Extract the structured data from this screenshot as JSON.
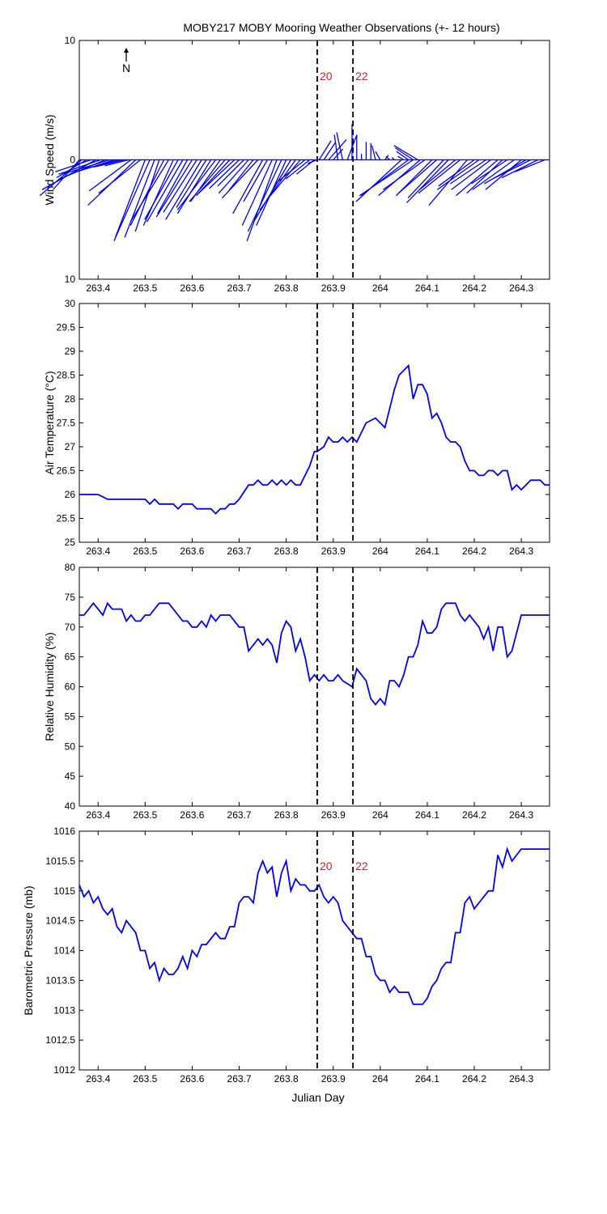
{
  "chart_data": [
    {
      "type": "wind-sticks",
      "title": "MOBY217 MOBY Mooring Weather Observations (+- 12 hours)",
      "ylabel": "Wind Speed (m/s)",
      "xlim": [
        263.36,
        264.36
      ],
      "ylim": [
        -10,
        10
      ],
      "y_tick_labels": [
        {
          "v": 10,
          "t": "10"
        },
        {
          "v": 0,
          "t": "0"
        },
        {
          "v": -10,
          "t": "10"
        }
      ],
      "north_label": "N",
      "marker_labels": [
        "20",
        "22"
      ],
      "marker_x": [
        263.866,
        263.942
      ],
      "wind": [
        {
          "x": 263.36,
          "u": 2.2,
          "v": -2.5
        },
        {
          "x": 263.365,
          "u": 3.5,
          "v": -3.0
        },
        {
          "x": 263.375,
          "u": 2.5,
          "v": -1.5
        },
        {
          "x": 263.385,
          "u": 3.0,
          "v": -1.0
        },
        {
          "x": 263.395,
          "u": 4.5,
          "v": -2.5
        },
        {
          "x": 263.405,
          "u": 3.5,
          "v": -1.2
        },
        {
          "x": 263.415,
          "u": 3.8,
          "v": -1.6
        },
        {
          "x": 263.425,
          "u": 4.0,
          "v": -1.2
        },
        {
          "x": 263.435,
          "u": 3.5,
          "v": -1.1
        },
        {
          "x": 263.445,
          "u": 3.0,
          "v": -0.8
        },
        {
          "x": 263.455,
          "u": 2.5,
          "v": -0.6
        },
        {
          "x": 263.465,
          "u": 2.0,
          "v": -0.5
        },
        {
          "x": 263.47,
          "u": 3.5,
          "v": -2.6
        },
        {
          "x": 263.48,
          "u": 4.0,
          "v": -3.8
        },
        {
          "x": 263.49,
          "u": 3.5,
          "v": -2.8
        },
        {
          "x": 263.5,
          "u": 2.5,
          "v": -6.5
        },
        {
          "x": 263.51,
          "u": 3.0,
          "v": -6.8
        },
        {
          "x": 263.52,
          "u": 2.5,
          "v": -6.5
        },
        {
          "x": 263.53,
          "u": 2.0,
          "v": -6.0
        },
        {
          "x": 263.54,
          "u": 2.8,
          "v": -5.5
        },
        {
          "x": 263.55,
          "u": 3.2,
          "v": -5.2
        },
        {
          "x": 263.56,
          "u": 2.5,
          "v": -5.5
        },
        {
          "x": 263.57,
          "u": 2.8,
          "v": -5.0
        },
        {
          "x": 263.58,
          "u": 3.0,
          "v": -5.2
        },
        {
          "x": 263.59,
          "u": 2.5,
          "v": -4.5
        },
        {
          "x": 263.6,
          "u": 3.0,
          "v": -4.8
        },
        {
          "x": 263.61,
          "u": 2.8,
          "v": -4.4
        },
        {
          "x": 263.62,
          "u": 3.0,
          "v": -5.0
        },
        {
          "x": 263.63,
          "u": 2.5,
          "v": -4.0
        },
        {
          "x": 263.64,
          "u": 2.8,
          "v": -4.5
        },
        {
          "x": 263.65,
          "u": 3.2,
          "v": -4.2
        },
        {
          "x": 263.66,
          "u": 2.5,
          "v": -3.5
        },
        {
          "x": 263.67,
          "u": 3.0,
          "v": -3.5
        },
        {
          "x": 263.68,
          "u": 2.8,
          "v": -3.0
        },
        {
          "x": 263.69,
          "u": 3.0,
          "v": -2.8
        },
        {
          "x": 263.7,
          "u": 2.5,
          "v": -2.4
        },
        {
          "x": 263.71,
          "u": 2.2,
          "v": -2.2
        },
        {
          "x": 263.72,
          "u": 2.5,
          "v": -2.8
        },
        {
          "x": 263.73,
          "u": 2.0,
          "v": -2.5
        },
        {
          "x": 263.74,
          "u": 3.0,
          "v": -3.2
        },
        {
          "x": 263.75,
          "u": 2.5,
          "v": -4.5
        },
        {
          "x": 263.76,
          "u": 2.0,
          "v": -3.5
        },
        {
          "x": 263.77,
          "u": 2.5,
          "v": -5.5
        },
        {
          "x": 263.78,
          "u": 2.5,
          "v": -6.8
        },
        {
          "x": 263.79,
          "u": 2.8,
          "v": -6.0
        },
        {
          "x": 263.8,
          "u": 2.5,
          "v": -5.5
        },
        {
          "x": 263.81,
          "u": 3.0,
          "v": -5.0
        },
        {
          "x": 263.82,
          "u": 3.0,
          "v": -4.2
        },
        {
          "x": 263.83,
          "u": 2.5,
          "v": -3.0
        },
        {
          "x": 263.84,
          "u": 2.5,
          "v": -2.0
        },
        {
          "x": 263.85,
          "u": 2.0,
          "v": -1.6
        },
        {
          "x": 263.86,
          "u": 1.5,
          "v": -1.2
        },
        {
          "x": 263.866,
          "u": 0.8,
          "v": -0.3
        },
        {
          "x": 263.87,
          "u": -1.0,
          "v": 1.6
        },
        {
          "x": 263.88,
          "u": -1.0,
          "v": 1.5
        },
        {
          "x": 263.89,
          "u": -1.5,
          "v": 1.7
        },
        {
          "x": 263.9,
          "u": -0.8,
          "v": 0.9
        },
        {
          "x": 263.91,
          "u": 0.3,
          "v": 2.1
        },
        {
          "x": 263.92,
          "u": 0.5,
          "v": 2.3
        },
        {
          "x": 263.93,
          "u": -0.8,
          "v": 2.1
        },
        {
          "x": 263.94,
          "u": 0.0,
          "v": 3.0
        },
        {
          "x": 263.95,
          "u": 0.0,
          "v": 2.1
        },
        {
          "x": 263.96,
          "u": 0.0,
          "v": 0.5
        },
        {
          "x": 263.97,
          "u": 0.0,
          "v": 1.5
        },
        {
          "x": 263.98,
          "u": 0.0,
          "v": 1.4
        },
        {
          "x": 263.99,
          "u": 0.3,
          "v": 1.2
        },
        {
          "x": 264.0,
          "u": 0.4,
          "v": 0.7
        },
        {
          "x": 264.01,
          "u": -0.3,
          "v": 0.4
        },
        {
          "x": 264.02,
          "u": 0.3,
          "v": 0.3
        },
        {
          "x": 264.03,
          "u": 0.2,
          "v": 0.2
        },
        {
          "x": 264.05,
          "u": 0.5,
          "v": 0.3
        },
        {
          "x": 264.06,
          "u": 1.0,
          "v": 0.7
        },
        {
          "x": 264.07,
          "u": 1.5,
          "v": 1.0
        },
        {
          "x": 264.08,
          "u": 2.0,
          "v": 1.2
        },
        {
          "x": 264.045,
          "u": 3.8,
          "v": -3.5
        },
        {
          "x": 264.06,
          "u": 4.0,
          "v": -3.0
        },
        {
          "x": 264.07,
          "u": 4.5,
          "v": -3.0
        },
        {
          "x": 264.085,
          "u": 3.5,
          "v": -3.0
        },
        {
          "x": 264.095,
          "u": 3.5,
          "v": -2.5
        },
        {
          "x": 264.11,
          "u": 3.0,
          "v": -3.0
        },
        {
          "x": 264.12,
          "u": 3.2,
          "v": -2.8
        },
        {
          "x": 264.135,
          "u": 3.0,
          "v": -3.2
        },
        {
          "x": 264.145,
          "u": 3.5,
          "v": -3.6
        },
        {
          "x": 264.16,
          "u": 3.0,
          "v": -2.5
        },
        {
          "x": 264.17,
          "u": 3.5,
          "v": -2.8
        },
        {
          "x": 264.185,
          "u": 3.2,
          "v": -3.8
        },
        {
          "x": 264.2,
          "u": 3.0,
          "v": -2.2
        },
        {
          "x": 264.21,
          "u": 3.5,
          "v": -2.5
        },
        {
          "x": 264.225,
          "u": 3.0,
          "v": -2.0
        },
        {
          "x": 264.235,
          "u": 3.3,
          "v": -2.5
        },
        {
          "x": 264.25,
          "u": 3.5,
          "v": -3.0
        },
        {
          "x": 264.26,
          "u": 3.0,
          "v": -2.8
        },
        {
          "x": 264.27,
          "u": 3.0,
          "v": -2.0
        },
        {
          "x": 264.285,
          "u": 3.5,
          "v": -2.5
        },
        {
          "x": 264.3,
          "u": 3.0,
          "v": -2.5
        },
        {
          "x": 264.31,
          "u": 3.5,
          "v": -2.0
        },
        {
          "x": 264.32,
          "u": 3.0,
          "v": -1.5
        },
        {
          "x": 264.335,
          "u": 3.0,
          "v": -1.5
        },
        {
          "x": 264.35,
          "u": 2.5,
          "v": -1.0
        }
      ]
    },
    {
      "type": "line",
      "xlabel": "Julian Day",
      "ylabel": "Air Temperature (°C)",
      "xlim": [
        263.36,
        264.36
      ],
      "ylim": [
        25,
        30
      ],
      "y_ticks": [
        25,
        25.5,
        26,
        26.5,
        27,
        27.5,
        28,
        28.5,
        29,
        29.5,
        30
      ],
      "marker_x": [
        263.866,
        263.942
      ],
      "x": [
        263.36,
        263.38,
        263.4,
        263.42,
        263.44,
        263.46,
        263.48,
        263.5,
        263.51,
        263.52,
        263.53,
        263.54,
        263.56,
        263.57,
        263.58,
        263.6,
        263.61,
        263.62,
        263.64,
        263.65,
        263.66,
        263.67,
        263.68,
        263.69,
        263.7,
        263.72,
        263.73,
        263.74,
        263.75,
        263.76,
        263.77,
        263.78,
        263.79,
        263.8,
        263.81,
        263.82,
        263.83,
        263.84,
        263.85,
        263.86,
        263.866,
        263.88,
        263.89,
        263.9,
        263.91,
        263.92,
        263.93,
        263.94,
        263.95,
        263.97,
        263.98,
        263.99,
        264.0,
        264.01,
        264.02,
        264.03,
        264.04,
        264.05,
        264.06,
        264.07,
        264.08,
        264.09,
        264.1,
        264.11,
        264.12,
        264.13,
        264.14,
        264.15,
        264.16,
        264.17,
        264.18,
        264.19,
        264.2,
        264.21,
        264.22,
        264.23,
        264.24,
        264.25,
        264.26,
        264.27,
        264.28,
        264.29,
        264.3,
        264.31,
        264.32,
        264.33,
        264.34,
        264.35,
        264.36
      ],
      "y": [
        26.0,
        26.0,
        26.0,
        25.9,
        25.9,
        25.9,
        25.9,
        25.9,
        25.8,
        25.9,
        25.8,
        25.8,
        25.8,
        25.7,
        25.8,
        25.8,
        25.7,
        25.7,
        25.7,
        25.6,
        25.7,
        25.7,
        25.8,
        25.8,
        25.9,
        26.2,
        26.2,
        26.3,
        26.2,
        26.2,
        26.3,
        26.2,
        26.3,
        26.2,
        26.3,
        26.2,
        26.2,
        26.4,
        26.6,
        26.9,
        26.9,
        27.0,
        27.2,
        27.1,
        27.1,
        27.2,
        27.1,
        27.2,
        27.1,
        27.5,
        27.55,
        27.6,
        27.5,
        27.4,
        27.8,
        28.2,
        28.5,
        28.6,
        28.7,
        28.0,
        28.3,
        28.3,
        28.1,
        27.6,
        27.7,
        27.5,
        27.2,
        27.1,
        27.1,
        27.0,
        26.7,
        26.5,
        26.5,
        26.4,
        26.4,
        26.5,
        26.5,
        26.4,
        26.5,
        26.5,
        26.1,
        26.2,
        26.1,
        26.2,
        26.3,
        26.3,
        26.3,
        26.2,
        26.2
      ]
    },
    {
      "type": "line",
      "xlabel": "Julian Day",
      "ylabel": "Relative Humidity (%)",
      "xlim": [
        263.36,
        264.36
      ],
      "ylim": [
        40,
        80
      ],
      "y_ticks": [
        40,
        45,
        50,
        55,
        60,
        65,
        70,
        75,
        80
      ],
      "marker_x": [
        263.866,
        263.942
      ],
      "x": [
        263.36,
        263.37,
        263.39,
        263.4,
        263.41,
        263.42,
        263.43,
        263.44,
        263.45,
        263.46,
        263.47,
        263.48,
        263.49,
        263.5,
        263.51,
        263.52,
        263.53,
        263.54,
        263.55,
        263.56,
        263.57,
        263.58,
        263.59,
        263.6,
        263.61,
        263.62,
        263.63,
        263.64,
        263.65,
        263.66,
        263.67,
        263.68,
        263.69,
        263.7,
        263.71,
        263.72,
        263.73,
        263.74,
        263.75,
        263.76,
        263.77,
        263.78,
        263.79,
        263.8,
        263.81,
        263.82,
        263.83,
        263.84,
        263.85,
        263.86,
        263.87,
        263.88,
        263.89,
        263.9,
        263.91,
        263.92,
        263.93,
        263.94,
        263.95,
        263.96,
        263.97,
        263.98,
        263.99,
        264.0,
        264.01,
        264.02,
        264.03,
        264.04,
        264.05,
        264.06,
        264.07,
        264.08,
        264.09,
        264.1,
        264.11,
        264.12,
        264.13,
        264.14,
        264.15,
        264.16,
        264.17,
        264.18,
        264.19,
        264.2,
        264.21,
        264.22,
        264.23,
        264.24,
        264.25,
        264.26,
        264.27,
        264.28,
        264.29,
        264.3,
        264.31,
        264.32,
        264.33,
        264.34,
        264.35,
        264.36
      ],
      "y": [
        72,
        72,
        74,
        73,
        72,
        74,
        73,
        73,
        73,
        71,
        72,
        71,
        71,
        72,
        72,
        73,
        74,
        74,
        74,
        73,
        72,
        71,
        71,
        70,
        70,
        71,
        70,
        72,
        71,
        72,
        72,
        72,
        71,
        70,
        70,
        66,
        67,
        68,
        67,
        68,
        67,
        64,
        69,
        71,
        70,
        66,
        68,
        65,
        61,
        62,
        61,
        62,
        61,
        61,
        62,
        61,
        60.5,
        60,
        63,
        62,
        61,
        58,
        57,
        58,
        57,
        61,
        61,
        60,
        62,
        65,
        65,
        67,
        71,
        69,
        69,
        70,
        73,
        74,
        74,
        74,
        72,
        71,
        72,
        71,
        70,
        68,
        70,
        66,
        70,
        70,
        65,
        66,
        69,
        72,
        72,
        72,
        72,
        72,
        72,
        72
      ],
      "y_fix_note": ""
    },
    {
      "type": "line",
      "xlabel": "Julian Day",
      "ylabel": "Barometric Pressure (mb)",
      "xlim": [
        263.36,
        264.36
      ],
      "ylim": [
        1012,
        1016
      ],
      "y_ticks": [
        1012,
        1012.5,
        1013,
        1013.5,
        1014,
        1014.5,
        1015,
        1015.5,
        1016
      ],
      "marker_labels": [
        "20",
        "22"
      ],
      "marker_x": [
        263.866,
        263.942
      ],
      "x": [
        263.36,
        263.37,
        263.38,
        263.39,
        263.4,
        263.41,
        263.42,
        263.43,
        263.44,
        263.45,
        263.46,
        263.47,
        263.48,
        263.49,
        263.5,
        263.51,
        263.52,
        263.53,
        263.54,
        263.55,
        263.56,
        263.57,
        263.58,
        263.59,
        263.6,
        263.61,
        263.62,
        263.63,
        263.64,
        263.65,
        263.66,
        263.67,
        263.68,
        263.69,
        263.7,
        263.71,
        263.72,
        263.73,
        263.74,
        263.75,
        263.76,
        263.77,
        263.78,
        263.79,
        263.8,
        263.81,
        263.82,
        263.83,
        263.84,
        263.85,
        263.86,
        263.87,
        263.88,
        263.89,
        263.9,
        263.91,
        263.92,
        263.93,
        263.94,
        263.95,
        263.96,
        263.97,
        263.98,
        263.99,
        264.0,
        264.01,
        264.02,
        264.03,
        264.04,
        264.05,
        264.06,
        264.07,
        264.08,
        264.09,
        264.1,
        264.11,
        264.12,
        264.13,
        264.14,
        264.15,
        264.16,
        264.17,
        264.18,
        264.19,
        264.2,
        264.21,
        264.22,
        264.23,
        264.24,
        264.25,
        264.26,
        264.27,
        264.28,
        264.29,
        264.3,
        264.31,
        264.32,
        264.33,
        264.34,
        264.35,
        264.36
      ],
      "y": [
        1015.1,
        1014.9,
        1015.0,
        1014.8,
        1014.9,
        1014.7,
        1014.6,
        1014.7,
        1014.4,
        1014.3,
        1014.5,
        1014.4,
        1014.3,
        1014.0,
        1014.0,
        1013.7,
        1013.8,
        1013.5,
        1013.7,
        1013.6,
        1013.6,
        1013.7,
        1013.9,
        1013.7,
        1014.0,
        1013.9,
        1014.1,
        1014.1,
        1014.2,
        1014.3,
        1014.2,
        1014.2,
        1014.4,
        1014.4,
        1014.8,
        1014.9,
        1014.9,
        1014.8,
        1015.3,
        1015.5,
        1015.3,
        1015.4,
        1014.9,
        1015.3,
        1015.5,
        1015.0,
        1015.2,
        1015.1,
        1015.1,
        1015.0,
        1015.0,
        1015.1,
        1014.9,
        1014.8,
        1014.9,
        1014.8,
        1014.5,
        1014.4,
        1014.3,
        1014.2,
        1014.2,
        1013.9,
        1013.9,
        1013.6,
        1013.5,
        1013.5,
        1013.3,
        1013.4,
        1013.3,
        1013.3,
        1013.3,
        1013.1,
        1013.1,
        1013.1,
        1013.2,
        1013.4,
        1013.5,
        1013.7,
        1013.8,
        1013.8,
        1014.3,
        1014.3,
        1014.8,
        1014.9,
        1014.7,
        1014.8,
        1014.9,
        1015.0,
        1015.0,
        1015.6,
        1015.4,
        1015.7,
        1015.5,
        1015.6,
        1015.7,
        1015.7,
        1015.7,
        1015.7,
        1015.7,
        1015.7,
        1015.7
      ]
    }
  ],
  "x_tick_labels": [
    "263.4",
    "263.5",
    "263.6",
    "263.7",
    "263.8",
    "263.9",
    "264",
    "264.1",
    "264.2",
    "264.3"
  ],
  "x_ticks": [
    263.4,
    263.5,
    263.6,
    263.7,
    263.8,
    263.9,
    264.0,
    264.1,
    264.2,
    264.3
  ],
  "colors": {
    "series": "#0000ee",
    "marker_label": "#cc2222",
    "axes": "#000000"
  }
}
